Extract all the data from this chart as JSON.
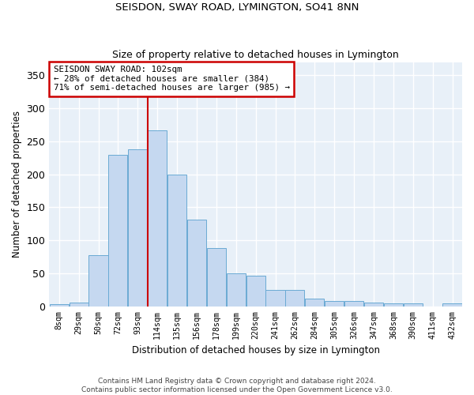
{
  "title": "SEISDON, SWAY ROAD, LYMINGTON, SO41 8NN",
  "subtitle": "Size of property relative to detached houses in Lymington",
  "xlabel": "Distribution of detached houses by size in Lymington",
  "ylabel": "Number of detached properties",
  "bar_color": "#c5d8f0",
  "bar_edge_color": "#6aaad4",
  "background_color": "#e8f0f8",
  "grid_color": "#ffffff",
  "categories": [
    "8sqm",
    "29sqm",
    "50sqm",
    "72sqm",
    "93sqm",
    "114sqm",
    "135sqm",
    "156sqm",
    "178sqm",
    "199sqm",
    "220sqm",
    "241sqm",
    "262sqm",
    "284sqm",
    "305sqm",
    "326sqm",
    "347sqm",
    "368sqm",
    "390sqm",
    "411sqm",
    "432sqm"
  ],
  "values": [
    3,
    6,
    78,
    229,
    238,
    267,
    200,
    131,
    88,
    50,
    46,
    25,
    25,
    12,
    8,
    8,
    6,
    5,
    5,
    0,
    4
  ],
  "annotation_text": "SEISDON SWAY ROAD: 102sqm\n← 28% of detached houses are smaller (384)\n71% of semi-detached houses are larger (985) →",
  "annotation_box_color": "#ffffff",
  "annotation_box_edge": "#cc0000",
  "vline_color": "#cc0000",
  "vline_pos": 4.5,
  "footnote": "Contains HM Land Registry data © Crown copyright and database right 2024.\nContains public sector information licensed under the Open Government Licence v3.0.",
  "ylim": [
    0,
    370
  ],
  "yticks": [
    0,
    50,
    100,
    150,
    200,
    250,
    300,
    350
  ]
}
